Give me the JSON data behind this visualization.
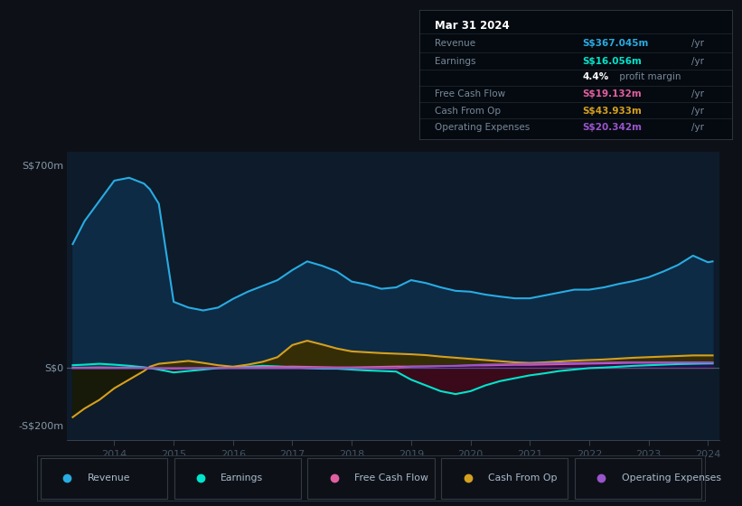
{
  "bg_color": "#0d1117",
  "plot_bg_color": "#0d1b2a",
  "years": [
    2013.3,
    2013.5,
    2013.75,
    2014.0,
    2014.25,
    2014.5,
    2014.6,
    2014.75,
    2015.0,
    2015.25,
    2015.5,
    2015.75,
    2016.0,
    2016.25,
    2016.5,
    2016.75,
    2017.0,
    2017.25,
    2017.5,
    2017.75,
    2018.0,
    2018.25,
    2018.5,
    2018.75,
    2019.0,
    2019.25,
    2019.5,
    2019.75,
    2020.0,
    2020.25,
    2020.5,
    2020.75,
    2021.0,
    2021.25,
    2021.5,
    2021.75,
    2022.0,
    2022.25,
    2022.5,
    2022.75,
    2023.0,
    2023.25,
    2023.5,
    2023.75,
    2024.0,
    2024.08
  ],
  "revenue": [
    430,
    510,
    580,
    650,
    660,
    640,
    620,
    570,
    230,
    210,
    200,
    210,
    240,
    265,
    285,
    305,
    340,
    370,
    355,
    335,
    300,
    290,
    275,
    280,
    305,
    295,
    280,
    268,
    265,
    255,
    248,
    242,
    242,
    252,
    262,
    272,
    272,
    280,
    292,
    302,
    315,
    335,
    358,
    390,
    367,
    370
  ],
  "earnings": [
    10,
    12,
    15,
    12,
    8,
    3,
    0,
    -5,
    -15,
    -10,
    -5,
    0,
    2,
    5,
    8,
    6,
    3,
    0,
    -2,
    -2,
    -5,
    -8,
    -10,
    -12,
    -40,
    -60,
    -80,
    -90,
    -80,
    -60,
    -45,
    -35,
    -25,
    -18,
    -10,
    -5,
    0,
    2,
    5,
    8,
    10,
    12,
    14,
    15,
    16,
    16
  ],
  "free_cash_flow": [
    2,
    2,
    3,
    2,
    2,
    1,
    0,
    -1,
    -2,
    -1,
    0,
    1,
    2,
    3,
    4,
    5,
    6,
    5,
    4,
    3,
    3,
    4,
    5,
    6,
    6,
    6,
    7,
    8,
    9,
    9,
    10,
    11,
    11,
    12,
    13,
    14,
    15,
    16,
    17,
    18,
    18,
    18,
    19,
    19,
    19,
    19
  ],
  "cash_from_op": [
    -170,
    -140,
    -110,
    -70,
    -40,
    -10,
    5,
    15,
    20,
    25,
    18,
    10,
    5,
    12,
    22,
    38,
    80,
    95,
    82,
    68,
    58,
    55,
    52,
    50,
    48,
    45,
    40,
    36,
    32,
    28,
    24,
    20,
    18,
    20,
    23,
    26,
    28,
    30,
    33,
    36,
    38,
    40,
    42,
    44,
    44,
    44
  ],
  "operating_expenses": [
    0,
    0,
    0,
    0,
    0,
    0,
    0,
    0,
    0,
    0,
    0,
    0,
    0,
    0,
    0,
    0,
    0,
    0,
    0,
    0,
    0,
    0,
    0,
    0,
    5,
    6,
    7,
    8,
    10,
    12,
    13,
    14,
    15,
    16,
    17,
    18,
    18,
    19,
    20,
    20,
    20,
    20,
    20,
    20,
    20,
    20
  ],
  "revenue_color": "#29abe2",
  "revenue_fill": "#0d2b45",
  "earnings_color": "#00e5cc",
  "earnings_fill_pos": "#004d44",
  "earnings_fill_neg": "#3d0a1a",
  "free_cash_flow_color": "#e05fa0",
  "cash_from_op_color": "#d4a020",
  "cash_from_op_fill_pos": "#3a2e00",
  "operating_expenses_color": "#9955cc",
  "grid_color": "#1e2e3e",
  "axis_color": "#445566",
  "text_color": "#8899aa",
  "zero_line_color": "#667788",
  "info_box": {
    "date": "Mar 31 2024",
    "revenue_label": "Revenue",
    "revenue_value": "S$367.045m",
    "revenue_color": "#29abe2",
    "earnings_label": "Earnings",
    "earnings_value": "S$16.056m",
    "earnings_color": "#00e5cc",
    "margin_pct": "4.4%",
    "margin_text": " profit margin",
    "fcf_label": "Free Cash Flow",
    "fcf_value": "S$19.132m",
    "fcf_color": "#e05fa0",
    "cashop_label": "Cash From Op",
    "cashop_value": "S$43.933m",
    "cashop_color": "#d4a020",
    "opex_label": "Operating Expenses",
    "opex_value": "S$20.342m",
    "opex_color": "#9955cc"
  },
  "legend": [
    {
      "label": "Revenue",
      "color": "#29abe2"
    },
    {
      "label": "Earnings",
      "color": "#00e5cc"
    },
    {
      "label": "Free Cash Flow",
      "color": "#e05fa0"
    },
    {
      "label": "Cash From Op",
      "color": "#d4a020"
    },
    {
      "label": "Operating Expenses",
      "color": "#9955cc"
    }
  ],
  "ylim_min": -250,
  "ylim_max": 750,
  "xlim_start": 2013.2,
  "xlim_end": 2024.2,
  "xticks": [
    2014,
    2015,
    2016,
    2017,
    2018,
    2019,
    2020,
    2021,
    2022,
    2023,
    2024
  ]
}
